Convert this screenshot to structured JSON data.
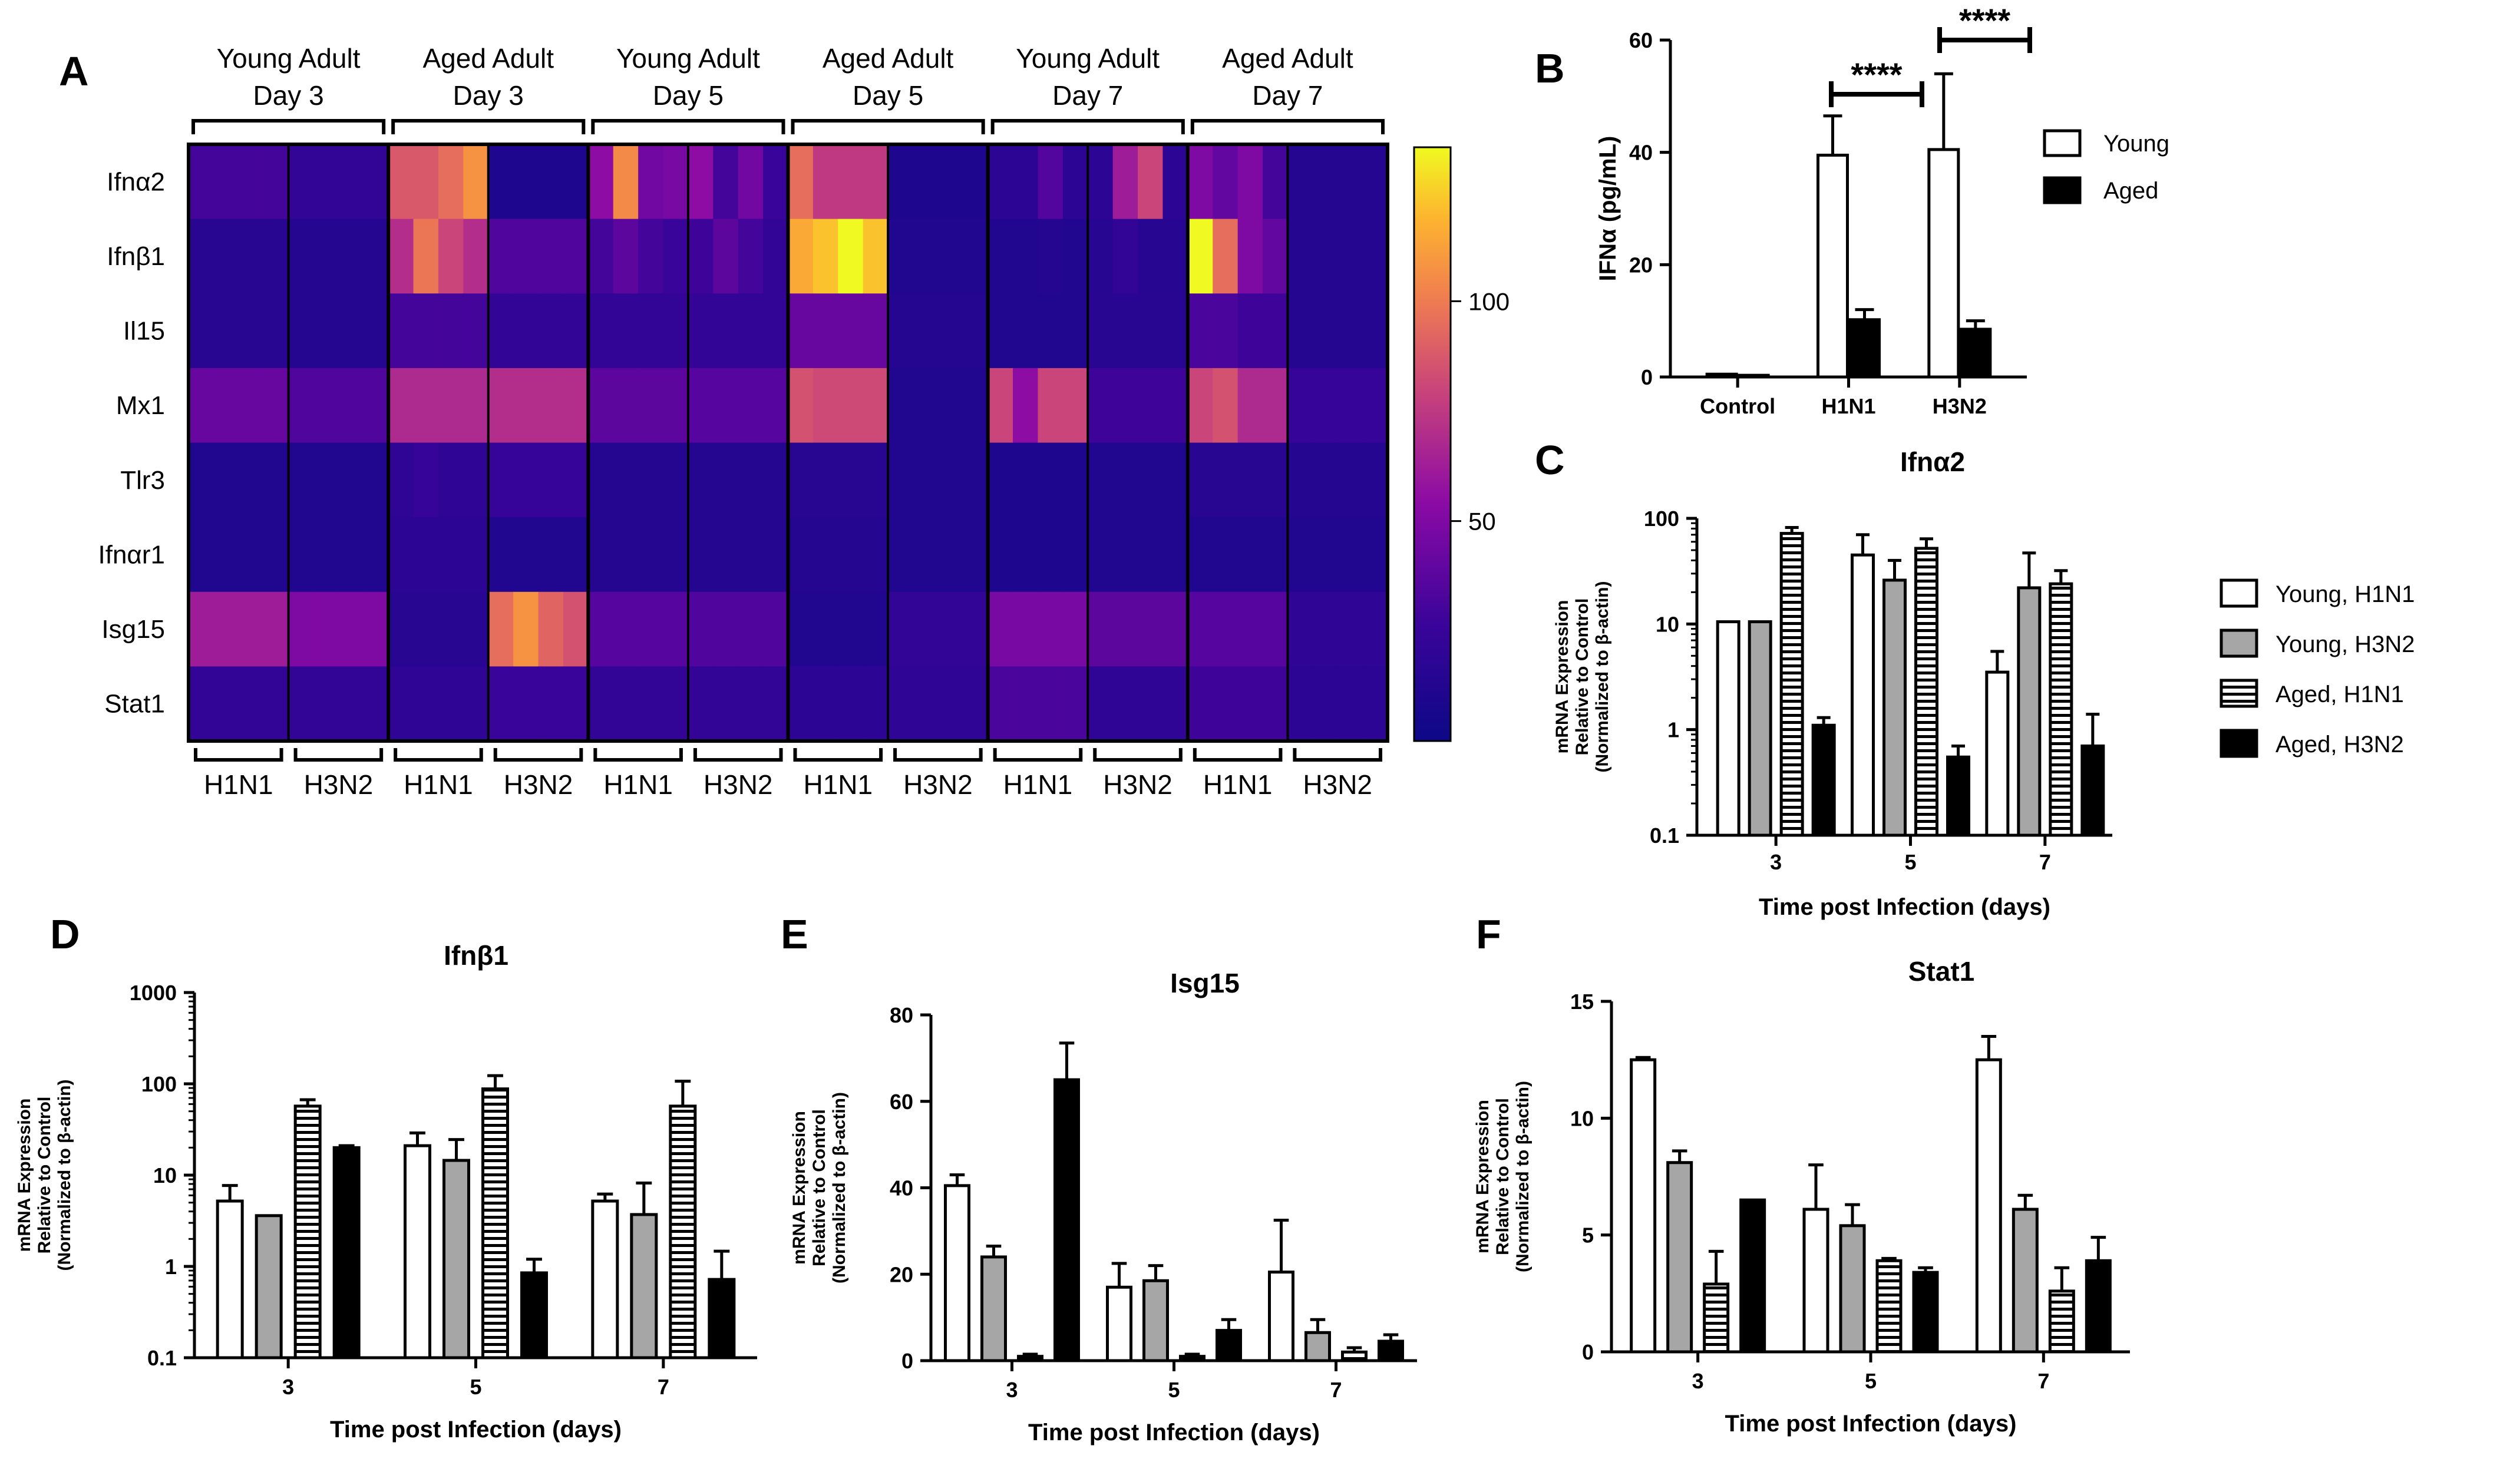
{
  "chart_data": [
    {
      "id": "A",
      "type": "heatmap",
      "panel_letter": "A",
      "genes": [
        "Ifnα2",
        "Ifnβ1",
        "Il15",
        "Mx1",
        "Tlr3",
        "Ifnαr1",
        "Isg15",
        "Stat1"
      ],
      "conditions": [
        {
          "label": [
            "Young Adult",
            "Day 3"
          ],
          "groups": [
            "H1N1",
            "H3N2"
          ]
        },
        {
          "label": [
            "Aged Adult",
            "Day 3"
          ],
          "groups": [
            "H1N1",
            "H3N2"
          ]
        },
        {
          "label": [
            "Young Adult",
            "Day 5"
          ],
          "groups": [
            "H1N1",
            "H3N2"
          ]
        },
        {
          "label": [
            "Aged Adult",
            "Day 5"
          ],
          "groups": [
            "H1N1",
            "H3N2"
          ]
        },
        {
          "label": [
            "Young Adult",
            "Day 7"
          ],
          "groups": [
            "H1N1",
            "H3N2"
          ]
        },
        {
          "label": [
            "Aged Adult",
            "Day 7"
          ],
          "groups": [
            "H1N1",
            "H3N2"
          ]
        }
      ],
      "colorbar": {
        "min": 0,
        "max": 135,
        "ticks": [
          50,
          100
        ]
      },
      "values": [
        [
          30,
          30,
          30,
          30,
          22,
          22,
          22,
          22,
          88,
          88,
          95,
          108,
          10,
          10,
          10,
          10,
          55,
          105,
          45,
          48,
          55,
          30,
          45,
          25,
          95,
          75,
          75,
          75,
          10,
          10,
          10,
          10,
          18,
          18,
          35,
          18,
          18,
          62,
          80,
          18,
          50,
          40,
          50,
          30,
          14,
          14,
          14,
          14
        ],
        [
          16,
          16,
          16,
          16,
          14,
          14,
          14,
          14,
          70,
          98,
          80,
          70,
          34,
          34,
          34,
          34,
          30,
          38,
          30,
          26,
          28,
          38,
          30,
          22,
          115,
          122,
          135,
          122,
          12,
          12,
          12,
          12,
          12,
          12,
          14,
          12,
          15,
          22,
          15,
          15,
          135,
          95,
          50,
          40,
          14,
          14,
          14,
          14
        ],
        [
          16,
          16,
          16,
          16,
          14,
          14,
          14,
          14,
          30,
          30,
          30,
          30,
          22,
          22,
          22,
          22,
          22,
          22,
          22,
          22,
          22,
          22,
          22,
          22,
          42,
          42,
          42,
          42,
          14,
          14,
          14,
          14,
          12,
          12,
          12,
          12,
          16,
          16,
          16,
          16,
          32,
          32,
          28,
          28,
          14,
          14,
          14,
          14
        ],
        [
          42,
          42,
          42,
          42,
          34,
          34,
          34,
          34,
          68,
          68,
          68,
          68,
          70,
          70,
          70,
          70,
          38,
          38,
          38,
          38,
          36,
          36,
          36,
          36,
          85,
          82,
          82,
          82,
          12,
          12,
          12,
          12,
          80,
          55,
          80,
          80,
          28,
          28,
          28,
          28,
          80,
          85,
          68,
          68,
          24,
          24,
          24,
          24
        ],
        [
          12,
          12,
          12,
          12,
          12,
          12,
          12,
          12,
          20,
          24,
          20,
          20,
          24,
          24,
          24,
          24,
          14,
          14,
          14,
          14,
          14,
          14,
          14,
          14,
          16,
          16,
          16,
          16,
          12,
          12,
          12,
          12,
          10,
          10,
          10,
          10,
          12,
          12,
          12,
          12,
          16,
          16,
          16,
          16,
          14,
          14,
          14,
          14
        ],
        [
          12,
          12,
          12,
          12,
          12,
          12,
          12,
          12,
          18,
          18,
          18,
          18,
          12,
          12,
          12,
          12,
          14,
          14,
          14,
          14,
          14,
          14,
          14,
          14,
          14,
          14,
          14,
          14,
          12,
          12,
          12,
          12,
          10,
          10,
          10,
          10,
          12,
          12,
          12,
          12,
          12,
          12,
          12,
          12,
          12,
          12,
          12,
          12
        ],
        [
          62,
          62,
          62,
          62,
          50,
          50,
          50,
          50,
          16,
          16,
          16,
          16,
          95,
          108,
          92,
          85,
          36,
          36,
          36,
          36,
          34,
          34,
          34,
          34,
          12,
          12,
          12,
          12,
          22,
          22,
          22,
          22,
          48,
          48,
          48,
          48,
          38,
          38,
          38,
          38,
          36,
          36,
          36,
          36,
          20,
          20,
          20,
          20
        ],
        [
          22,
          22,
          22,
          22,
          22,
          22,
          22,
          22,
          20,
          20,
          20,
          20,
          26,
          26,
          26,
          26,
          22,
          22,
          22,
          22,
          22,
          22,
          22,
          22,
          18,
          18,
          18,
          18,
          20,
          20,
          20,
          20,
          32,
          32,
          32,
          32,
          20,
          20,
          20,
          20,
          28,
          28,
          28,
          28,
          18,
          18,
          18,
          18
        ]
      ]
    },
    {
      "id": "B",
      "type": "bar",
      "panel_letter": "B",
      "ylabel": "IFNα (pg/mL)",
      "categories": [
        "Control",
        "H1N1",
        "H3N2"
      ],
      "series": [
        {
          "name": "Young",
          "values": [
            0.5,
            39.5,
            40.5
          ],
          "errors": [
            0,
            7,
            13.5
          ]
        },
        {
          "name": "Aged",
          "values": [
            0.3,
            10.2,
            8.5
          ],
          "errors": [
            0,
            1.8,
            1.5
          ]
        }
      ],
      "ylim": [
        0,
        60
      ],
      "yticks": [
        0,
        20,
        40,
        60
      ],
      "significance": [
        {
          "category": "H1N1",
          "label": "****"
        },
        {
          "category": "H3N2",
          "label": "****"
        }
      ],
      "legend": [
        "Young",
        "Aged"
      ]
    },
    {
      "id": "C",
      "type": "bar",
      "panel_letter": "C",
      "title": "Ifnα2",
      "scale": "log",
      "ylabel": [
        "mRNA Expression",
        "Relative to Control",
        "(Normalized to β-actin)"
      ],
      "xlabel": "Time post Infection (days)",
      "categories": [
        "3",
        "5",
        "7"
      ],
      "ylim": [
        0.1,
        100
      ],
      "yticks": [
        0.1,
        1,
        10,
        100
      ],
      "ytick_labels": [
        "0.1",
        "1",
        "10",
        "100"
      ],
      "series": [
        {
          "name": "Young, H1N1",
          "values": [
            10.5,
            45,
            3.5
          ],
          "errors": [
            0,
            25,
            2
          ]
        },
        {
          "name": "Young, H3N2",
          "values": [
            10.5,
            26,
            22
          ],
          "errors": [
            0,
            14,
            25
          ]
        },
        {
          "name": "Aged, H1N1",
          "values": [
            72,
            52,
            24
          ],
          "errors": [
            10,
            12,
            8
          ]
        },
        {
          "name": "Aged, H3N2",
          "values": [
            1.1,
            0.55,
            0.7
          ],
          "errors": [
            0.2,
            0.15,
            0.7
          ]
        }
      ],
      "legend": [
        "Young, H1N1",
        "Young, H3N2",
        "Aged, H1N1",
        "Aged, H3N2"
      ]
    },
    {
      "id": "D",
      "type": "bar",
      "panel_letter": "D",
      "title": "Ifnβ1",
      "scale": "log",
      "ylabel": [
        "mRNA Expression",
        "Relative to Control",
        "(Normalized to β-actin)"
      ],
      "xlabel": "Time post Infection (days)",
      "categories": [
        "3",
        "5",
        "7"
      ],
      "ylim": [
        0.1,
        1000
      ],
      "yticks": [
        0.1,
        1,
        10,
        100,
        1000
      ],
      "ytick_labels": [
        "0.1",
        "1",
        "10",
        "100",
        "1000"
      ],
      "series": [
        {
          "name": "Young, H1N1",
          "values": [
            5.2,
            21,
            5.2
          ],
          "errors": [
            2.5,
            8,
            1
          ]
        },
        {
          "name": "Young, H3N2",
          "values": [
            3.6,
            14.5,
            3.7
          ],
          "errors": [
            0,
            10,
            4.5
          ]
        },
        {
          "name": "Aged, H1N1",
          "values": [
            57,
            88,
            57
          ],
          "errors": [
            10,
            35,
            50
          ]
        },
        {
          "name": "Aged, H3N2",
          "values": [
            20,
            0.85,
            0.72
          ],
          "errors": [
            1,
            0.35,
            0.75
          ]
        }
      ]
    },
    {
      "id": "E",
      "type": "bar",
      "panel_letter": "E",
      "title": "Isg15",
      "ylabel": [
        "mRNA Expression",
        "Relative to Control",
        "(Normalized to β-actin)"
      ],
      "xlabel": "Time post Infection (days)",
      "categories": [
        "3",
        "5",
        "7"
      ],
      "ylim": [
        0,
        80
      ],
      "yticks": [
        0,
        20,
        40,
        60,
        80
      ],
      "series": [
        {
          "name": "Young, H1N1",
          "values": [
            40.5,
            17,
            20.5
          ],
          "errors": [
            2.5,
            5.5,
            12
          ]
        },
        {
          "name": "Young, H3N2",
          "values": [
            24,
            18.5,
            6.5
          ],
          "errors": [
            2.5,
            3.5,
            3
          ]
        },
        {
          "name": "Aged, H1N1",
          "values": [
            1,
            1,
            2
          ],
          "errors": [
            0.5,
            0.5,
            1
          ]
        },
        {
          "name": "Aged, H3N2",
          "values": [
            65,
            7,
            4.5
          ],
          "errors": [
            8.5,
            2.5,
            1.5
          ]
        }
      ]
    },
    {
      "id": "F",
      "type": "bar",
      "panel_letter": "F",
      "title": "Stat1",
      "ylabel": [
        "mRNA Expression",
        "Relative to Control",
        "(Normalized to β-actin)"
      ],
      "xlabel": "Time post Infection (days)",
      "categories": [
        "3",
        "5",
        "7"
      ],
      "ylim": [
        0,
        15
      ],
      "yticks": [
        0,
        5,
        10,
        15
      ],
      "series": [
        {
          "name": "Young, H1N1",
          "values": [
            12.5,
            6.1,
            12.5
          ],
          "errors": [
            0.1,
            1.9,
            1
          ]
        },
        {
          "name": "Young, H3N2",
          "values": [
            8.1,
            5.4,
            6.1
          ],
          "errors": [
            0.5,
            0.9,
            0.6
          ]
        },
        {
          "name": "Aged, H1N1",
          "values": [
            2.9,
            3.9,
            2.6
          ],
          "errors": [
            1.4,
            0.1,
            1
          ]
        },
        {
          "name": "Aged, H3N2",
          "values": [
            6.5,
            3.4,
            3.9
          ],
          "errors": [
            0,
            0.2,
            1
          ]
        }
      ]
    }
  ]
}
